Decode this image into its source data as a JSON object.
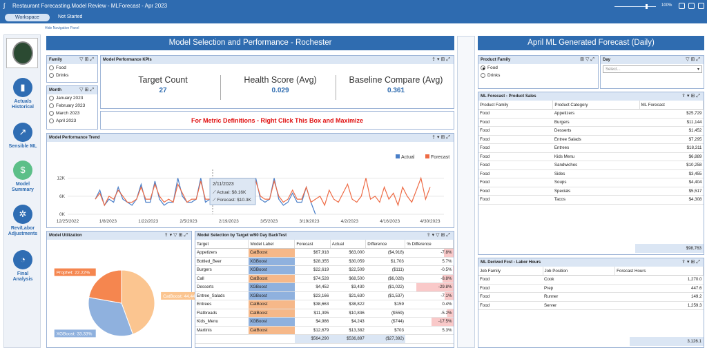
{
  "topbar": {
    "title": "Restaurant Forecasting.Model Review  -  MLForecast  -  Apr 2023",
    "zoom": "100%",
    "workspace": "Workspace",
    "status": "Not Started"
  },
  "nav": {
    "hide": "Hide Navigation Panel",
    "items": [
      {
        "label1": "Actuals",
        "label2": "Historical",
        "icon": "bar-chart-icon"
      },
      {
        "label1": "Sensible ML",
        "label2": "",
        "icon": "trend-icon"
      },
      {
        "label1": "Model",
        "label2": "Summary",
        "icon": "money-icon"
      },
      {
        "label1": "Rev/Labor",
        "label2": "Adjustments",
        "icon": "gear-icon"
      },
      {
        "label1": "Final",
        "label2": "Analysis",
        "icon": "pie-icon"
      }
    ]
  },
  "left": {
    "banner": "Model Selection and Performance - Rochester",
    "family": {
      "title": "Family",
      "options": [
        "Food",
        "Drinks"
      ]
    },
    "month": {
      "title": "Month",
      "options": [
        "January 2023",
        "February 2023",
        "March 2023",
        "April 2023"
      ]
    },
    "kpi": {
      "title": "Model Performance KPIs",
      "items": [
        {
          "label": "Target Count",
          "value": "27"
        },
        {
          "label": "Health Score (Avg)",
          "value": "0.029"
        },
        {
          "label": "Baseline Compare (Avg)",
          "value": "0.361"
        }
      ]
    },
    "metric_note": "For Metric Definitions - Right Click This Box and Maximize",
    "trend": {
      "title": "Model Performance Trend",
      "tooltip": {
        "date": "2/11/2023",
        "actual": "Actual: $8.16K",
        "forecast": "Forecast: $10.3K"
      }
    },
    "util": {
      "title": "Model Utilization"
    },
    "sel": {
      "title": "Model Selection by Target w/90 Day BackTest",
      "headers": [
        "Target",
        "Model Label",
        "Forecast",
        "Actual",
        "Difference",
        "% Difference"
      ],
      "rows": [
        [
          "Appetizers",
          "CatBoost",
          "$67,918",
          "$63,000",
          "($4,918)",
          "-7.8%"
        ],
        [
          "Bottled_Beer",
          "XGBoost",
          "$28,355",
          "$30,059",
          "$1,703",
          "5.7%"
        ],
        [
          "Burgers",
          "XGBoost",
          "$22,619",
          "$22,509",
          "($111)",
          "-0.5%"
        ],
        [
          "Call",
          "CatBoost",
          "$74,528",
          "$68,500",
          "($6,028)",
          "-8.8%"
        ],
        [
          "Desserts",
          "XGBoost",
          "$4,452",
          "$3,430",
          "($1,022)",
          "-29.8%"
        ],
        [
          "Entree_Salads",
          "XGBoost",
          "$23,166",
          "$21,630",
          "($1,537)",
          "-7.1%"
        ],
        [
          "Entrees",
          "CatBoost",
          "$38,663",
          "$38,822",
          "$159",
          "0.4%"
        ],
        [
          "Flatbreads",
          "CatBoost",
          "$11,395",
          "$10,836",
          "($559)",
          "-5.2%"
        ],
        [
          "Kids_Menu",
          "XGBoost",
          "$4,986",
          "$4,243",
          "($744)",
          "-17.5%"
        ],
        [
          "Martinis",
          "CatBoost",
          "$12,679",
          "$13,382",
          "$703",
          "5.3%"
        ]
      ],
      "totals": [
        "$564,290",
        "$536,897",
        "($27,392)"
      ]
    }
  },
  "right": {
    "banner": "April ML Generated Forecast (Daily)",
    "pf": {
      "title": "Product Family",
      "options": [
        "Food",
        "Drinks"
      ]
    },
    "day": {
      "title": "Day",
      "placeholder": "Select..."
    },
    "sales": {
      "title": "ML Forecast - Product Sales",
      "headers": [
        "Product Family",
        "Product Category",
        "ML Forecast"
      ],
      "rows": [
        [
          "Food",
          "Appetizers",
          "$25,729"
        ],
        [
          "Food",
          "Burgers",
          "$11,144"
        ],
        [
          "Food",
          "Desserts",
          "$1,452"
        ],
        [
          "Food",
          "Entree Salads",
          "$7,295"
        ],
        [
          "Food",
          "Entrees",
          "$18,311"
        ],
        [
          "Food",
          "Kids Menu",
          "$6,889"
        ],
        [
          "Food",
          "Sandwiches",
          "$10,258"
        ],
        [
          "Food",
          "Sides",
          "$3,455"
        ],
        [
          "Food",
          "Soups",
          "$4,404"
        ],
        [
          "Food",
          "Specials",
          "$5,517"
        ],
        [
          "Food",
          "Tacos",
          "$4,308"
        ]
      ],
      "total": "$98,763"
    },
    "labor": {
      "title": "ML Derived Fcst - Labor Hours",
      "headers": [
        "Job Family",
        "Job Position",
        "Forecast Hours"
      ],
      "rows": [
        [
          "Food",
          "Cook",
          "1,270.0"
        ],
        [
          "Food",
          "Prep",
          "447.6"
        ],
        [
          "Food",
          "Runner",
          "149.2"
        ],
        [
          "Food",
          "Server",
          "1,259.3"
        ]
      ],
      "total": "3,126.1"
    }
  },
  "chart_data": [
    {
      "type": "line",
      "title": "Model Performance Trend",
      "x_ticks": [
        "12/25/2022",
        "1/8/2023",
        "1/22/2023",
        "2/5/2023",
        "2/19/2023",
        "3/5/2023",
        "3/19/2023",
        "4/2/2023",
        "4/16/2023",
        "4/30/2023"
      ],
      "y_ticks": [
        "0K",
        "6K",
        "12K"
      ],
      "ylim": [
        0,
        16
      ],
      "legend": [
        "Actual",
        "Forecast"
      ],
      "colors": {
        "Actual": "#4a7fc8",
        "Forecast": "#ee6b45"
      },
      "series": [
        {
          "name": "Actual",
          "values": [
            5,
            8,
            3,
            5,
            4,
            9,
            5,
            4,
            3,
            5,
            10,
            4,
            4,
            11,
            5,
            3,
            4,
            4,
            12,
            6,
            4,
            4,
            5,
            12,
            4,
            5,
            5,
            11,
            4,
            4,
            5,
            11,
            5,
            4,
            5,
            12,
            5,
            4,
            5,
            12,
            5,
            3,
            4,
            7,
            4,
            4,
            9,
            4,
            0
          ]
        },
        {
          "name": "Forecast",
          "values": [
            5,
            7,
            3,
            6,
            5,
            8,
            6,
            4,
            4,
            5,
            9,
            5,
            5,
            10,
            6,
            4,
            5,
            4,
            10,
            7,
            4,
            5,
            5,
            11,
            5,
            5,
            6,
            11,
            4,
            5,
            5,
            10,
            6,
            5,
            5,
            11,
            6,
            5,
            5,
            11,
            6,
            4,
            5,
            8,
            5,
            5,
            9,
            4,
            5,
            6,
            3,
            8,
            5,
            4,
            7,
            10,
            5,
            4,
            6,
            12,
            5,
            6,
            4,
            9,
            5,
            7,
            3,
            9,
            6,
            4,
            8,
            12,
            5,
            9
          ]
        }
      ]
    },
    {
      "type": "pie",
      "title": "Model Utilization",
      "slices": [
        {
          "label": "CatBoost: 44.44%",
          "value": 44.44,
          "color": "#fbc590"
        },
        {
          "label": "XGBoost: 33.33%",
          "value": 33.33,
          "color": "#8fb1de"
        },
        {
          "label": "Prophet: 22.22%",
          "value": 22.22,
          "color": "#f5864f"
        }
      ]
    }
  ]
}
